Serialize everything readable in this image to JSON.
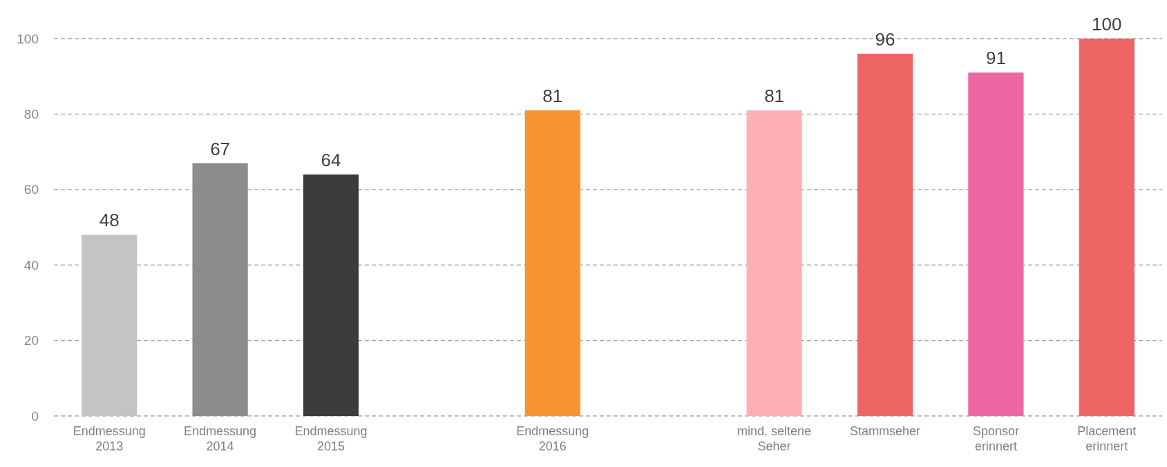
{
  "chart_data": {
    "type": "bar",
    "categories": [
      "Endmessung\n2013",
      "Endmessung\n2014",
      "Endmessung\n2015",
      null,
      "Endmessung\n2016",
      null,
      "mind. seltene\nSeher",
      "Stammseher",
      "Sponsor\nerinnert",
      "Placement\nerinnert"
    ],
    "values": [
      48,
      67,
      64,
      null,
      81,
      null,
      81,
      96,
      91,
      100
    ],
    "colors": [
      "#c4c4c4",
      "#8c8c8c",
      "#3c3c3c",
      null,
      "#f79433",
      null,
      "#ffb0b4",
      "#ef6464",
      "#ee67a5",
      "#ef6464"
    ],
    "ylim": [
      0,
      100
    ],
    "yticks": [
      0,
      20,
      40,
      60,
      80,
      100
    ],
    "grid": "y",
    "data_labels": true
  }
}
